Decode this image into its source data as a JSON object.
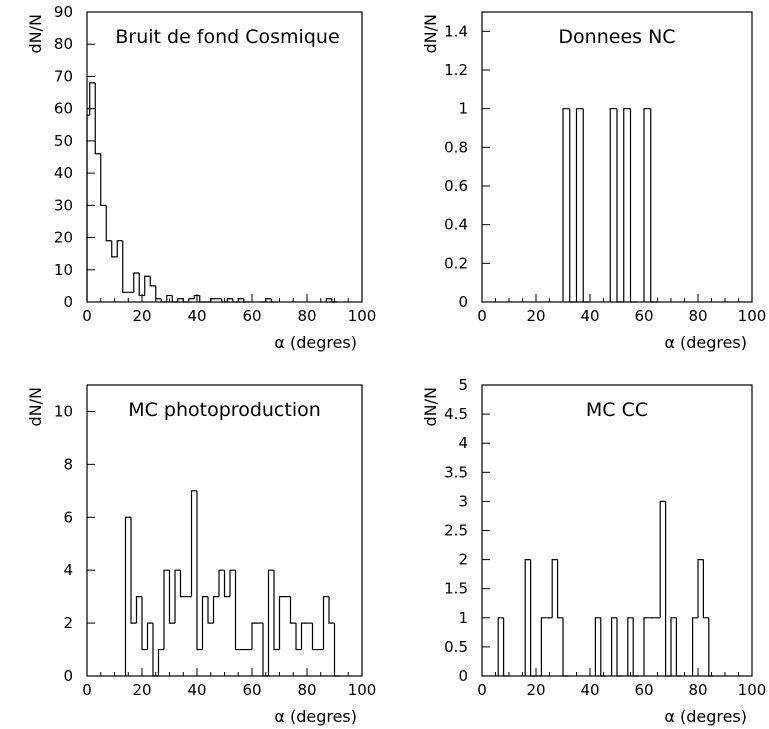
{
  "chart_data": [
    {
      "type": "bar",
      "title": "Bruit de fond Cosmique",
      "xlabel": "α (degres)",
      "ylabel": "dN/N",
      "xlim": [
        0,
        100
      ],
      "ylim": [
        0,
        90
      ],
      "bin_width": 2,
      "xticks": [
        "0",
        "20",
        "40",
        "60",
        "80",
        "100"
      ],
      "yticks": [
        "0",
        "10",
        "20",
        "30",
        "40",
        "50",
        "60",
        "70",
        "80",
        "90"
      ],
      "bins": [
        {
          "x": 0,
          "value": 58
        },
        {
          "x": 1,
          "value": 68
        },
        {
          "x": 3,
          "value": 46
        },
        {
          "x": 5,
          "value": 30
        },
        {
          "x": 7,
          "value": 19
        },
        {
          "x": 9,
          "value": 14
        },
        {
          "x": 11,
          "value": 19
        },
        {
          "x": 13,
          "value": 3
        },
        {
          "x": 15,
          "value": 3
        },
        {
          "x": 17,
          "value": 9
        },
        {
          "x": 19,
          "value": 2
        },
        {
          "x": 21,
          "value": 8
        },
        {
          "x": 23,
          "value": 5
        },
        {
          "x": 25,
          "value": 1
        },
        {
          "x": 27,
          "value": 0
        },
        {
          "x": 29,
          "value": 2
        },
        {
          "x": 31,
          "value": 0
        },
        {
          "x": 33,
          "value": 1
        },
        {
          "x": 35,
          "value": 0
        },
        {
          "x": 37,
          "value": 1
        },
        {
          "x": 39,
          "value": 2
        },
        {
          "x": 41,
          "value": 0
        },
        {
          "x": 43,
          "value": 0
        },
        {
          "x": 45,
          "value": 1
        },
        {
          "x": 47,
          "value": 1
        },
        {
          "x": 49,
          "value": 0
        },
        {
          "x": 51,
          "value": 1
        },
        {
          "x": 53,
          "value": 0
        },
        {
          "x": 55,
          "value": 1
        },
        {
          "x": 57,
          "value": 0
        },
        {
          "x": 63,
          "value": 0
        },
        {
          "x": 65,
          "value": 1
        },
        {
          "x": 67,
          "value": 0
        },
        {
          "x": 87,
          "value": 1
        },
        {
          "x": 89,
          "value": 0
        }
      ]
    },
    {
      "type": "bar",
      "title": "Donnees NC",
      "xlabel": "α (degres)",
      "ylabel": "dN/N",
      "xlim": [
        0,
        100
      ],
      "ylim": [
        0,
        1.5
      ],
      "bin_width": 2.5,
      "xticks": [
        "0",
        "20",
        "40",
        "60",
        "80",
        "100"
      ],
      "yticks": [
        "0",
        "0.2",
        "0.4",
        "0.6",
        "0.8",
        "1",
        "1.2",
        "1.4"
      ],
      "bins": [
        {
          "x": 30,
          "value": 1
        },
        {
          "x": 32.5,
          "value": 0
        },
        {
          "x": 35,
          "value": 1
        },
        {
          "x": 37.5,
          "value": 0
        },
        {
          "x": 47.5,
          "value": 1
        },
        {
          "x": 50,
          "value": 0
        },
        {
          "x": 52.5,
          "value": 1
        },
        {
          "x": 55,
          "value": 0
        },
        {
          "x": 60,
          "value": 1
        },
        {
          "x": 62.5,
          "value": 0
        }
      ]
    },
    {
      "type": "bar",
      "title": "MC photoproduction",
      "xlabel": "α (degres)",
      "ylabel": "dN/N",
      "xlim": [
        0,
        100
      ],
      "ylim": [
        0,
        11
      ],
      "bin_width": 2,
      "xticks": [
        "0",
        "20",
        "40",
        "60",
        "80",
        "100"
      ],
      "yticks": [
        "0",
        "2",
        "4",
        "6",
        "8",
        "10"
      ],
      "bins": [
        {
          "x": 14,
          "value": 6
        },
        {
          "x": 16,
          "value": 2
        },
        {
          "x": 18,
          "value": 3
        },
        {
          "x": 20,
          "value": 1
        },
        {
          "x": 22,
          "value": 2
        },
        {
          "x": 24,
          "value": 0
        },
        {
          "x": 26,
          "value": 1
        },
        {
          "x": 28,
          "value": 4
        },
        {
          "x": 30,
          "value": 2
        },
        {
          "x": 32,
          "value": 4
        },
        {
          "x": 34,
          "value": 3
        },
        {
          "x": 36,
          "value": 3
        },
        {
          "x": 38,
          "value": 7
        },
        {
          "x": 40,
          "value": 1
        },
        {
          "x": 42,
          "value": 3
        },
        {
          "x": 44,
          "value": 2
        },
        {
          "x": 46,
          "value": 3
        },
        {
          "x": 48,
          "value": 4
        },
        {
          "x": 50,
          "value": 3
        },
        {
          "x": 52,
          "value": 4
        },
        {
          "x": 54,
          "value": 1
        },
        {
          "x": 56,
          "value": 1
        },
        {
          "x": 58,
          "value": 1
        },
        {
          "x": 60,
          "value": 2
        },
        {
          "x": 62,
          "value": 2
        },
        {
          "x": 64,
          "value": 0
        },
        {
          "x": 66,
          "value": 4
        },
        {
          "x": 68,
          "value": 1
        },
        {
          "x": 70,
          "value": 3
        },
        {
          "x": 72,
          "value": 3
        },
        {
          "x": 74,
          "value": 2
        },
        {
          "x": 76,
          "value": 1
        },
        {
          "x": 78,
          "value": 2
        },
        {
          "x": 80,
          "value": 2
        },
        {
          "x": 82,
          "value": 1
        },
        {
          "x": 84,
          "value": 1
        },
        {
          "x": 86,
          "value": 3
        },
        {
          "x": 88,
          "value": 2
        },
        {
          "x": 90,
          "value": 0
        }
      ]
    },
    {
      "type": "bar",
      "title": "MC CC",
      "xlabel": "α (degres)",
      "ylabel": "dN/N",
      "xlim": [
        0,
        100
      ],
      "ylim": [
        0,
        5
      ],
      "bin_width": 2,
      "xticks": [
        "0",
        "20",
        "40",
        "60",
        "80",
        "100"
      ],
      "yticks": [
        "0",
        "0.5",
        "1",
        "1.5",
        "2",
        "2.5",
        "3",
        "3.5",
        "4",
        "4.5",
        "5"
      ],
      "bins": [
        {
          "x": 6,
          "value": 1
        },
        {
          "x": 8,
          "value": 0
        },
        {
          "x": 16,
          "value": 2
        },
        {
          "x": 18,
          "value": 0
        },
        {
          "x": 20,
          "value": 0
        },
        {
          "x": 22,
          "value": 1
        },
        {
          "x": 24,
          "value": 1
        },
        {
          "x": 26,
          "value": 2
        },
        {
          "x": 28,
          "value": 1
        },
        {
          "x": 30,
          "value": 0
        },
        {
          "x": 42,
          "value": 1
        },
        {
          "x": 44,
          "value": 0
        },
        {
          "x": 48,
          "value": 1
        },
        {
          "x": 50,
          "value": 0
        },
        {
          "x": 54,
          "value": 1
        },
        {
          "x": 56,
          "value": 0
        },
        {
          "x": 60,
          "value": 1
        },
        {
          "x": 62,
          "value": 1
        },
        {
          "x": 64,
          "value": 1
        },
        {
          "x": 66,
          "value": 3
        },
        {
          "x": 68,
          "value": 0
        },
        {
          "x": 70,
          "value": 1
        },
        {
          "x": 72,
          "value": 0
        },
        {
          "x": 78,
          "value": 1
        },
        {
          "x": 80,
          "value": 2
        },
        {
          "x": 82,
          "value": 1
        },
        {
          "x": 84,
          "value": 0
        }
      ]
    }
  ]
}
